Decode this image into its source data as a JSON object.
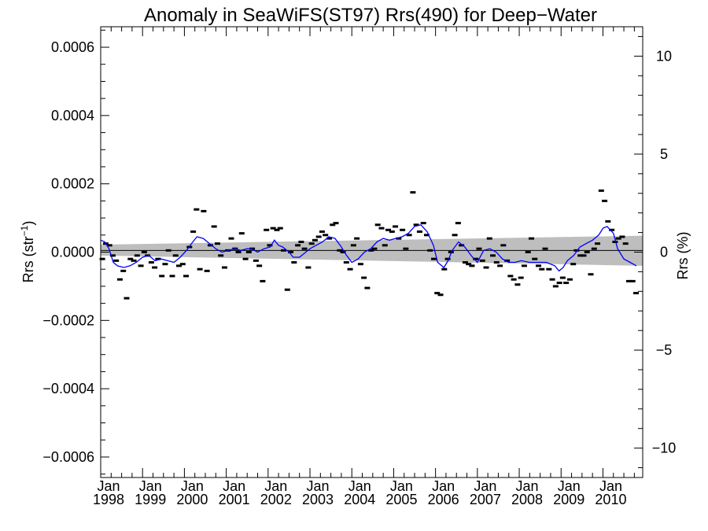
{
  "chart_data": {
    "type": "scatter",
    "title": "Anomaly in SeaWiFS(ST97) Rrs(490) for Deep−Water",
    "ylabel_left_main": "Rrs (str",
    "ylabel_left_sup": "−1",
    "ylabel_left_tail": ")",
    "ylabel_right": "Rrs (%)",
    "xlim": [
      1998.0,
      2010.95
    ],
    "ylim_left": [
      -0.00066,
      0.00066
    ],
    "ylim_right": [
      -11.5,
      11.5
    ],
    "left_ticks": [
      {
        "value": 0.0006,
        "label": "0.0006"
      },
      {
        "value": 0.0004,
        "label": "0.0004"
      },
      {
        "value": 0.0002,
        "label": "0.0002"
      },
      {
        "value": 0.0,
        "label": "0.0000"
      },
      {
        "value": -0.0002,
        "label": "−0.0002"
      },
      {
        "value": -0.0004,
        "label": "−0.0004"
      },
      {
        "value": -0.0006,
        "label": "−0.0006"
      }
    ],
    "right_ticks": [
      {
        "value": 10,
        "label": "10"
      },
      {
        "value": 5,
        "label": "5"
      },
      {
        "value": 0,
        "label": "0"
      },
      {
        "value": -5,
        "label": "−5"
      },
      {
        "value": -10,
        "label": "−10"
      }
    ],
    "x_ticks": [
      {
        "value": 1998,
        "month": "Jan",
        "year": "1998"
      },
      {
        "value": 1999,
        "month": "Jan",
        "year": "1999"
      },
      {
        "value": 2000,
        "month": "Jan",
        "year": "2000"
      },
      {
        "value": 2001,
        "month": "Jan",
        "year": "2001"
      },
      {
        "value": 2002,
        "month": "Jan",
        "year": "2002"
      },
      {
        "value": 2003,
        "month": "Jan",
        "year": "2003"
      },
      {
        "value": 2004,
        "month": "Jan",
        "year": "2004"
      },
      {
        "value": 2005,
        "month": "Jan",
        "year": "2005"
      },
      {
        "value": 2006,
        "month": "Jan",
        "year": "2006"
      },
      {
        "value": 2007,
        "month": "Jan",
        "year": "2007"
      },
      {
        "value": 2008,
        "month": "Jan",
        "year": "2008"
      },
      {
        "value": 2009,
        "month": "Jan",
        "year": "2009"
      },
      {
        "value": 2010,
        "month": "Jan",
        "year": "2010"
      }
    ],
    "grid": false,
    "monthly_anomalies": [
      [
        1997.96,
        0.00017
      ],
      [
        1998.04,
        -2e-05
      ],
      [
        1998.12,
        2.5e-05
      ],
      [
        1998.21,
        2e-05
      ],
      [
        1998.29,
        -1e-05
      ],
      [
        1998.37,
        -2.5e-05
      ],
      [
        1998.46,
        -8e-05
      ],
      [
        1998.54,
        -5.5e-05
      ],
      [
        1998.62,
        -0.000135
      ],
      [
        1998.71,
        -2e-05
      ],
      [
        1998.79,
        -2.5e-05
      ],
      [
        1998.87,
        -1e-05
      ],
      [
        1998.96,
        -4e-05
      ],
      [
        1999.04,
        0.0
      ],
      [
        1999.12,
        -1e-05
      ],
      [
        1999.21,
        -3e-05
      ],
      [
        1999.29,
        -4.5e-05
      ],
      [
        1999.37,
        -2e-05
      ],
      [
        1999.46,
        -7e-05
      ],
      [
        1999.54,
        -3.5e-05
      ],
      [
        1999.62,
        5e-06
      ],
      [
        1999.71,
        -7e-05
      ],
      [
        1999.79,
        -1e-05
      ],
      [
        1999.87,
        -4e-05
      ],
      [
        1999.96,
        -3.5e-05
      ],
      [
        2000.04,
        -7e-05
      ],
      [
        2000.12,
        1.5e-05
      ],
      [
        2000.21,
        6e-05
      ],
      [
        2000.29,
        0.000125
      ],
      [
        2000.37,
        -5e-05
      ],
      [
        2000.46,
        0.00012
      ],
      [
        2000.54,
        -5.5e-05
      ],
      [
        2000.62,
        2e-05
      ],
      [
        2000.71,
        7.5e-05
      ],
      [
        2000.79,
        2.5e-05
      ],
      [
        2000.87,
        -1e-05
      ],
      [
        2000.96,
        -4.5e-05
      ],
      [
        2001.04,
        5e-06
      ],
      [
        2001.12,
        4e-05
      ],
      [
        2001.21,
        1e-05
      ],
      [
        2001.29,
        0.0
      ],
      [
        2001.37,
        5.5e-05
      ],
      [
        2001.46,
        -2e-05
      ],
      [
        2001.54,
        0.0
      ],
      [
        2001.62,
        1e-05
      ],
      [
        2001.71,
        -2.5e-05
      ],
      [
        2001.79,
        -4e-05
      ],
      [
        2001.87,
        -8.5e-05
      ],
      [
        2001.96,
        6.5e-05
      ],
      [
        2002.04,
        2e-05
      ],
      [
        2002.12,
        7e-05
      ],
      [
        2002.21,
        6.5e-05
      ],
      [
        2002.29,
        7e-05
      ],
      [
        2002.37,
        5e-06
      ],
      [
        2002.46,
        -0.00011
      ],
      [
        2002.54,
        0.0
      ],
      [
        2002.62,
        -3e-05
      ],
      [
        2002.71,
        2e-05
      ],
      [
        2002.79,
        3e-05
      ],
      [
        2002.87,
        1e-05
      ],
      [
        2002.96,
        -4.5e-05
      ],
      [
        2003.04,
        2.5e-05
      ],
      [
        2003.12,
        3.5e-05
      ],
      [
        2003.21,
        4.5e-05
      ],
      [
        2003.29,
        6e-05
      ],
      [
        2003.37,
        5e-05
      ],
      [
        2003.46,
        4e-05
      ],
      [
        2003.54,
        8e-05
      ],
      [
        2003.62,
        8.5e-05
      ],
      [
        2003.71,
        5e-06
      ],
      [
        2003.79,
        0.0
      ],
      [
        2003.87,
        -3e-05
      ],
      [
        2003.96,
        -5e-05
      ],
      [
        2004.04,
        2e-05
      ],
      [
        2004.12,
        4e-05
      ],
      [
        2004.21,
        -3.5e-05
      ],
      [
        2004.29,
        -7.5e-05
      ],
      [
        2004.37,
        -0.000105
      ],
      [
        2004.46,
        5e-06
      ],
      [
        2004.54,
        1e-05
      ],
      [
        2004.62,
        8e-05
      ],
      [
        2004.71,
        7e-05
      ],
      [
        2004.79,
        2e-05
      ],
      [
        2004.87,
        6.5e-05
      ],
      [
        2004.96,
        6e-05
      ],
      [
        2005.04,
        7.5e-05
      ],
      [
        2005.12,
        4e-05
      ],
      [
        2005.21,
        6.5e-05
      ],
      [
        2005.29,
        1e-05
      ],
      [
        2005.37,
        5e-05
      ],
      [
        2005.46,
        0.000175
      ],
      [
        2005.54,
        8e-05
      ],
      [
        2005.62,
        6e-05
      ],
      [
        2005.71,
        8.5e-05
      ],
      [
        2005.79,
        5e-05
      ],
      [
        2005.87,
        5e-06
      ],
      [
        2005.96,
        -2e-05
      ],
      [
        2006.04,
        -0.00012
      ],
      [
        2006.12,
        -0.000125
      ],
      [
        2006.21,
        -5e-05
      ],
      [
        2006.29,
        -2e-05
      ],
      [
        2006.37,
        0.0
      ],
      [
        2006.46,
        5e-05
      ],
      [
        2006.54,
        8.5e-05
      ],
      [
        2006.62,
        2e-05
      ],
      [
        2006.71,
        -3e-05
      ],
      [
        2006.79,
        -3.5e-05
      ],
      [
        2006.87,
        -4e-05
      ],
      [
        2006.96,
        -2e-05
      ],
      [
        2007.04,
        1e-05
      ],
      [
        2007.12,
        -2.5e-05
      ],
      [
        2007.21,
        -4.5e-05
      ],
      [
        2007.29,
        4e-05
      ],
      [
        2007.37,
        -1e-05
      ],
      [
        2007.46,
        -3e-05
      ],
      [
        2007.54,
        -4e-05
      ],
      [
        2007.62,
        2e-05
      ],
      [
        2007.71,
        -2.5e-05
      ],
      [
        2007.79,
        -7e-05
      ],
      [
        2007.87,
        -8e-05
      ],
      [
        2007.96,
        -9.5e-05
      ],
      [
        2008.04,
        -7.5e-05
      ],
      [
        2008.12,
        -4e-05
      ],
      [
        2008.21,
        0.0
      ],
      [
        2008.29,
        4e-05
      ],
      [
        2008.37,
        -2e-05
      ],
      [
        2008.46,
        -4e-05
      ],
      [
        2008.54,
        -5e-05
      ],
      [
        2008.62,
        1e-05
      ],
      [
        2008.71,
        -5e-05
      ],
      [
        2008.79,
        -8e-05
      ],
      [
        2008.87,
        -0.0001
      ],
      [
        2008.96,
        -9e-05
      ],
      [
        2009.04,
        -7.5e-05
      ],
      [
        2009.12,
        -9e-05
      ],
      [
        2009.21,
        -8e-05
      ],
      [
        2009.29,
        -3.5e-05
      ],
      [
        2009.37,
        5e-06
      ],
      [
        2009.46,
        -1e-05
      ],
      [
        2009.54,
        -1e-05
      ],
      [
        2009.62,
        0.0
      ],
      [
        2009.71,
        -6.5e-05
      ],
      [
        2009.79,
        1e-05
      ],
      [
        2009.87,
        2.5e-05
      ],
      [
        2009.96,
        0.00018
      ],
      [
        2010.04,
        0.00015
      ],
      [
        2010.12,
        9e-05
      ],
      [
        2010.21,
        6.5e-05
      ],
      [
        2010.29,
        3e-05
      ],
      [
        2010.37,
        4e-05
      ],
      [
        2010.46,
        4.5e-05
      ],
      [
        2010.54,
        2.5e-05
      ],
      [
        2010.62,
        -8.5e-05
      ],
      [
        2010.71,
        -8.5e-05
      ],
      [
        2010.79,
        -0.00012
      ]
    ],
    "running_mean": [
      [
        1998.0,
        3.5e-05
      ],
      [
        1998.1,
        3e-05
      ],
      [
        1998.2,
        1e-05
      ],
      [
        1998.3,
        -3e-05
      ],
      [
        1998.4,
        -4e-05
      ],
      [
        1998.55,
        -4.5e-05
      ],
      [
        1998.7,
        -4e-05
      ],
      [
        1998.85,
        -3e-05
      ],
      [
        1999.0,
        -1.5e-05
      ],
      [
        1999.15,
        -1e-05
      ],
      [
        1999.3,
        -2.5e-05
      ],
      [
        1999.45,
        -2e-05
      ],
      [
        1999.6,
        -2.5e-05
      ],
      [
        1999.75,
        -3e-05
      ],
      [
        1999.9,
        -1.5e-05
      ],
      [
        2000.05,
        5e-06
      ],
      [
        2000.2,
        3e-05
      ],
      [
        2000.3,
        4.5e-05
      ],
      [
        2000.45,
        4e-05
      ],
      [
        2000.55,
        3e-05
      ],
      [
        2000.65,
        2e-05
      ],
      [
        2000.75,
        1e-05
      ],
      [
        2000.9,
        0.0
      ],
      [
        2001.05,
        5e-06
      ],
      [
        2001.2,
        1e-05
      ],
      [
        2001.35,
        5e-06
      ],
      [
        2001.5,
        1e-05
      ],
      [
        2001.6,
        1e-05
      ],
      [
        2001.75,
        0.0
      ],
      [
        2001.9,
        1e-05
      ],
      [
        2002.05,
        1.5e-05
      ],
      [
        2002.15,
        3.5e-05
      ],
      [
        2002.25,
        2e-05
      ],
      [
        2002.35,
        1.5e-05
      ],
      [
        2002.5,
        0.0
      ],
      [
        2002.6,
        -1.5e-05
      ],
      [
        2002.75,
        -1.5e-05
      ],
      [
        2002.85,
        -5e-06
      ],
      [
        2003.0,
        1e-05
      ],
      [
        2003.15,
        2e-05
      ],
      [
        2003.3,
        3e-05
      ],
      [
        2003.45,
        4.5e-05
      ],
      [
        2003.6,
        4e-05
      ],
      [
        2003.75,
        1.5e-05
      ],
      [
        2003.85,
        -5e-06
      ],
      [
        2004.0,
        -3e-05
      ],
      [
        2004.15,
        -2e-05
      ],
      [
        2004.3,
        0.0
      ],
      [
        2004.45,
        1e-05
      ],
      [
        2004.6,
        3e-05
      ],
      [
        2004.75,
        4e-05
      ],
      [
        2004.9,
        3.5e-05
      ],
      [
        2005.05,
        4e-05
      ],
      [
        2005.2,
        4.5e-05
      ],
      [
        2005.35,
        5.5e-05
      ],
      [
        2005.5,
        7.5e-05
      ],
      [
        2005.65,
        8e-05
      ],
      [
        2005.8,
        6e-05
      ],
      [
        2005.95,
        2e-05
      ],
      [
        2006.05,
        -3e-05
      ],
      [
        2006.2,
        -4.5e-05
      ],
      [
        2006.3,
        -2.5e-05
      ],
      [
        2006.4,
        5e-06
      ],
      [
        2006.55,
        3e-05
      ],
      [
        2006.7,
        1.5e-05
      ],
      [
        2006.85,
        -1e-05
      ],
      [
        2007.0,
        -3e-05
      ],
      [
        2007.15,
        5e-06
      ],
      [
        2007.3,
        1e-05
      ],
      [
        2007.45,
        0.0
      ],
      [
        2007.6,
        -2e-05
      ],
      [
        2007.75,
        -3e-05
      ],
      [
        2007.9,
        -3e-05
      ],
      [
        2008.05,
        -2.5e-05
      ],
      [
        2008.25,
        -3e-05
      ],
      [
        2008.45,
        -3e-05
      ],
      [
        2008.65,
        -3e-05
      ],
      [
        2008.85,
        -4e-05
      ],
      [
        2008.95,
        -5.5e-05
      ],
      [
        2009.05,
        -4.5e-05
      ],
      [
        2009.15,
        -2.5e-05
      ],
      [
        2009.3,
        -1e-05
      ],
      [
        2009.45,
        1.5e-05
      ],
      [
        2009.6,
        2.5e-05
      ],
      [
        2009.75,
        3.5e-05
      ],
      [
        2009.9,
        5e-05
      ],
      [
        2010.0,
        7e-05
      ],
      [
        2010.1,
        7.5e-05
      ],
      [
        2010.25,
        5.5e-05
      ],
      [
        2010.35,
        1e-05
      ],
      [
        2010.5,
        -2e-05
      ],
      [
        2010.65,
        -3e-05
      ],
      [
        2010.8,
        -4e-05
      ]
    ],
    "trend_band": {
      "x": [
        1998.0,
        2010.95
      ],
      "center": [
        5e-06,
        5e-06
      ],
      "upper": [
        2.2e-05,
        4.8e-05
      ],
      "lower": [
        -1e-05,
        -4e-05
      ]
    },
    "colors": {
      "running_mean": "#0000ff",
      "band": "#bebebe",
      "points": "#000000",
      "axes": "#000000"
    }
  }
}
